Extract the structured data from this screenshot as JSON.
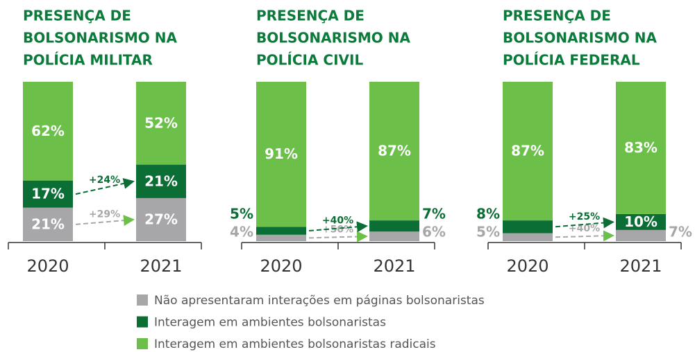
{
  "legend": [
    {
      "name": "Não apresentaram interações em páginas bolsonaristas",
      "color": "#a7a7a9"
    },
    {
      "name": "Interagem em ambientes bolsonaristas",
      "color": "#0b6e35"
    },
    {
      "name": "Interagem em ambientes bolsonaristas radicais",
      "color": "#6cc04a"
    }
  ],
  "chart_data": [
    {
      "type": "bar",
      "stacked": true,
      "title": [
        "PRESENÇA DE",
        "BOLSONARISMO NA",
        "POLÍCIA MILITAR"
      ],
      "categories": [
        "2020",
        "2021"
      ],
      "ylim": [
        0,
        100
      ],
      "series": [
        {
          "values": [
            21,
            27
          ],
          "value_labels": [
            "21%",
            "27%"
          ],
          "annotation": "+29%"
        },
        {
          "values": [
            17,
            21
          ],
          "value_labels": [
            "17%",
            "21%"
          ],
          "annotation": "+24%"
        },
        {
          "values": [
            62,
            52
          ],
          "value_labels": [
            "62%",
            "52%"
          ]
        }
      ]
    },
    {
      "type": "bar",
      "stacked": true,
      "title": [
        "PRESENÇA DE",
        "BOLSONARISMO NA",
        "POLÍCIA CIVIL"
      ],
      "categories": [
        "2020",
        "2021"
      ],
      "ylim": [
        0,
        100
      ],
      "series": [
        {
          "values": [
            4,
            6
          ],
          "value_labels": [
            "4%",
            "6%"
          ],
          "annotation": "+50%"
        },
        {
          "values": [
            5,
            7
          ],
          "value_labels": [
            "5%",
            "7%"
          ],
          "annotation": "+40%"
        },
        {
          "values": [
            91,
            87
          ],
          "value_labels": [
            "91%",
            "87%"
          ]
        }
      ]
    },
    {
      "type": "bar",
      "stacked": true,
      "title": [
        "PRESENÇA DE",
        "BOLSONARISMO NA",
        "POLÍCIA FEDERAL"
      ],
      "categories": [
        "2020",
        "2021"
      ],
      "ylim": [
        0,
        100
      ],
      "series": [
        {
          "values": [
            5,
            7
          ],
          "value_labels": [
            "5%",
            "7%"
          ],
          "annotation": "+40%"
        },
        {
          "values": [
            8,
            10
          ],
          "value_labels": [
            "8%",
            "10%"
          ],
          "annotation": "+25%"
        },
        {
          "values": [
            87,
            83
          ],
          "value_labels": [
            "87%",
            "83%"
          ]
        }
      ]
    }
  ]
}
